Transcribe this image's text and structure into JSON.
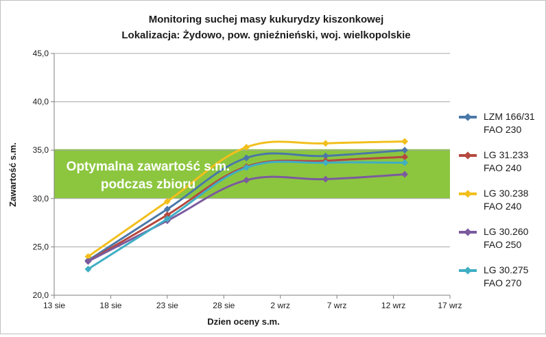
{
  "chart_data": {
    "type": "line",
    "title": "Monitoring suchej masy kukurydzy kiszonkowej",
    "subtitle": "Lokalizacja: Żydowo, pow. gnieźnieński, woj. wielkopolskie",
    "xlabel": "Dzien oceny s.m.",
    "ylabel": "Zawartość s.m.",
    "xlim": [
      "13 sie",
      "17 wrz"
    ],
    "ylim": [
      20.0,
      45.0
    ],
    "x_ticks": [
      "13 sie",
      "18 sie",
      "23 sie",
      "28 sie",
      "2 wrz",
      "7 wrz",
      "12 wrz",
      "17 wrz"
    ],
    "y_ticks": [
      "20,0",
      "25,0",
      "30,0",
      "35,0",
      "40,0",
      "45,0"
    ],
    "grid": "horizontal",
    "legend_position": "right",
    "x": [
      "16 sie",
      "23 sie",
      "30 sie",
      "6 wrz",
      "13 wrz"
    ],
    "band": {
      "from": 30.0,
      "to": 35.1,
      "color": "#8cc63f",
      "label": "Optymalna zawartość s.m.\npodczas zbioru"
    },
    "series": [
      {
        "name": "LZM 166/31\nFAO 230",
        "color": "#4a78a8",
        "values": [
          23.6,
          28.9,
          34.2,
          34.4,
          35.0
        ]
      },
      {
        "name": "LG 31.233\nFAO 240",
        "color": "#b5483f",
        "values": [
          23.5,
          28.3,
          33.3,
          33.9,
          34.3
        ]
      },
      {
        "name": "LG 30.238\nFAO 240",
        "color": "#f2bf1d",
        "values": [
          24.0,
          29.7,
          35.3,
          35.7,
          35.9
        ]
      },
      {
        "name": "LG 30.260\nFAO 250",
        "color": "#7b5a9e",
        "values": [
          23.5,
          27.7,
          31.9,
          32.0,
          32.5
        ]
      },
      {
        "name": "LG 30.275\nFAO 270",
        "color": "#3faec4",
        "values": [
          22.7,
          27.9,
          33.2,
          33.7,
          33.7
        ]
      }
    ]
  }
}
